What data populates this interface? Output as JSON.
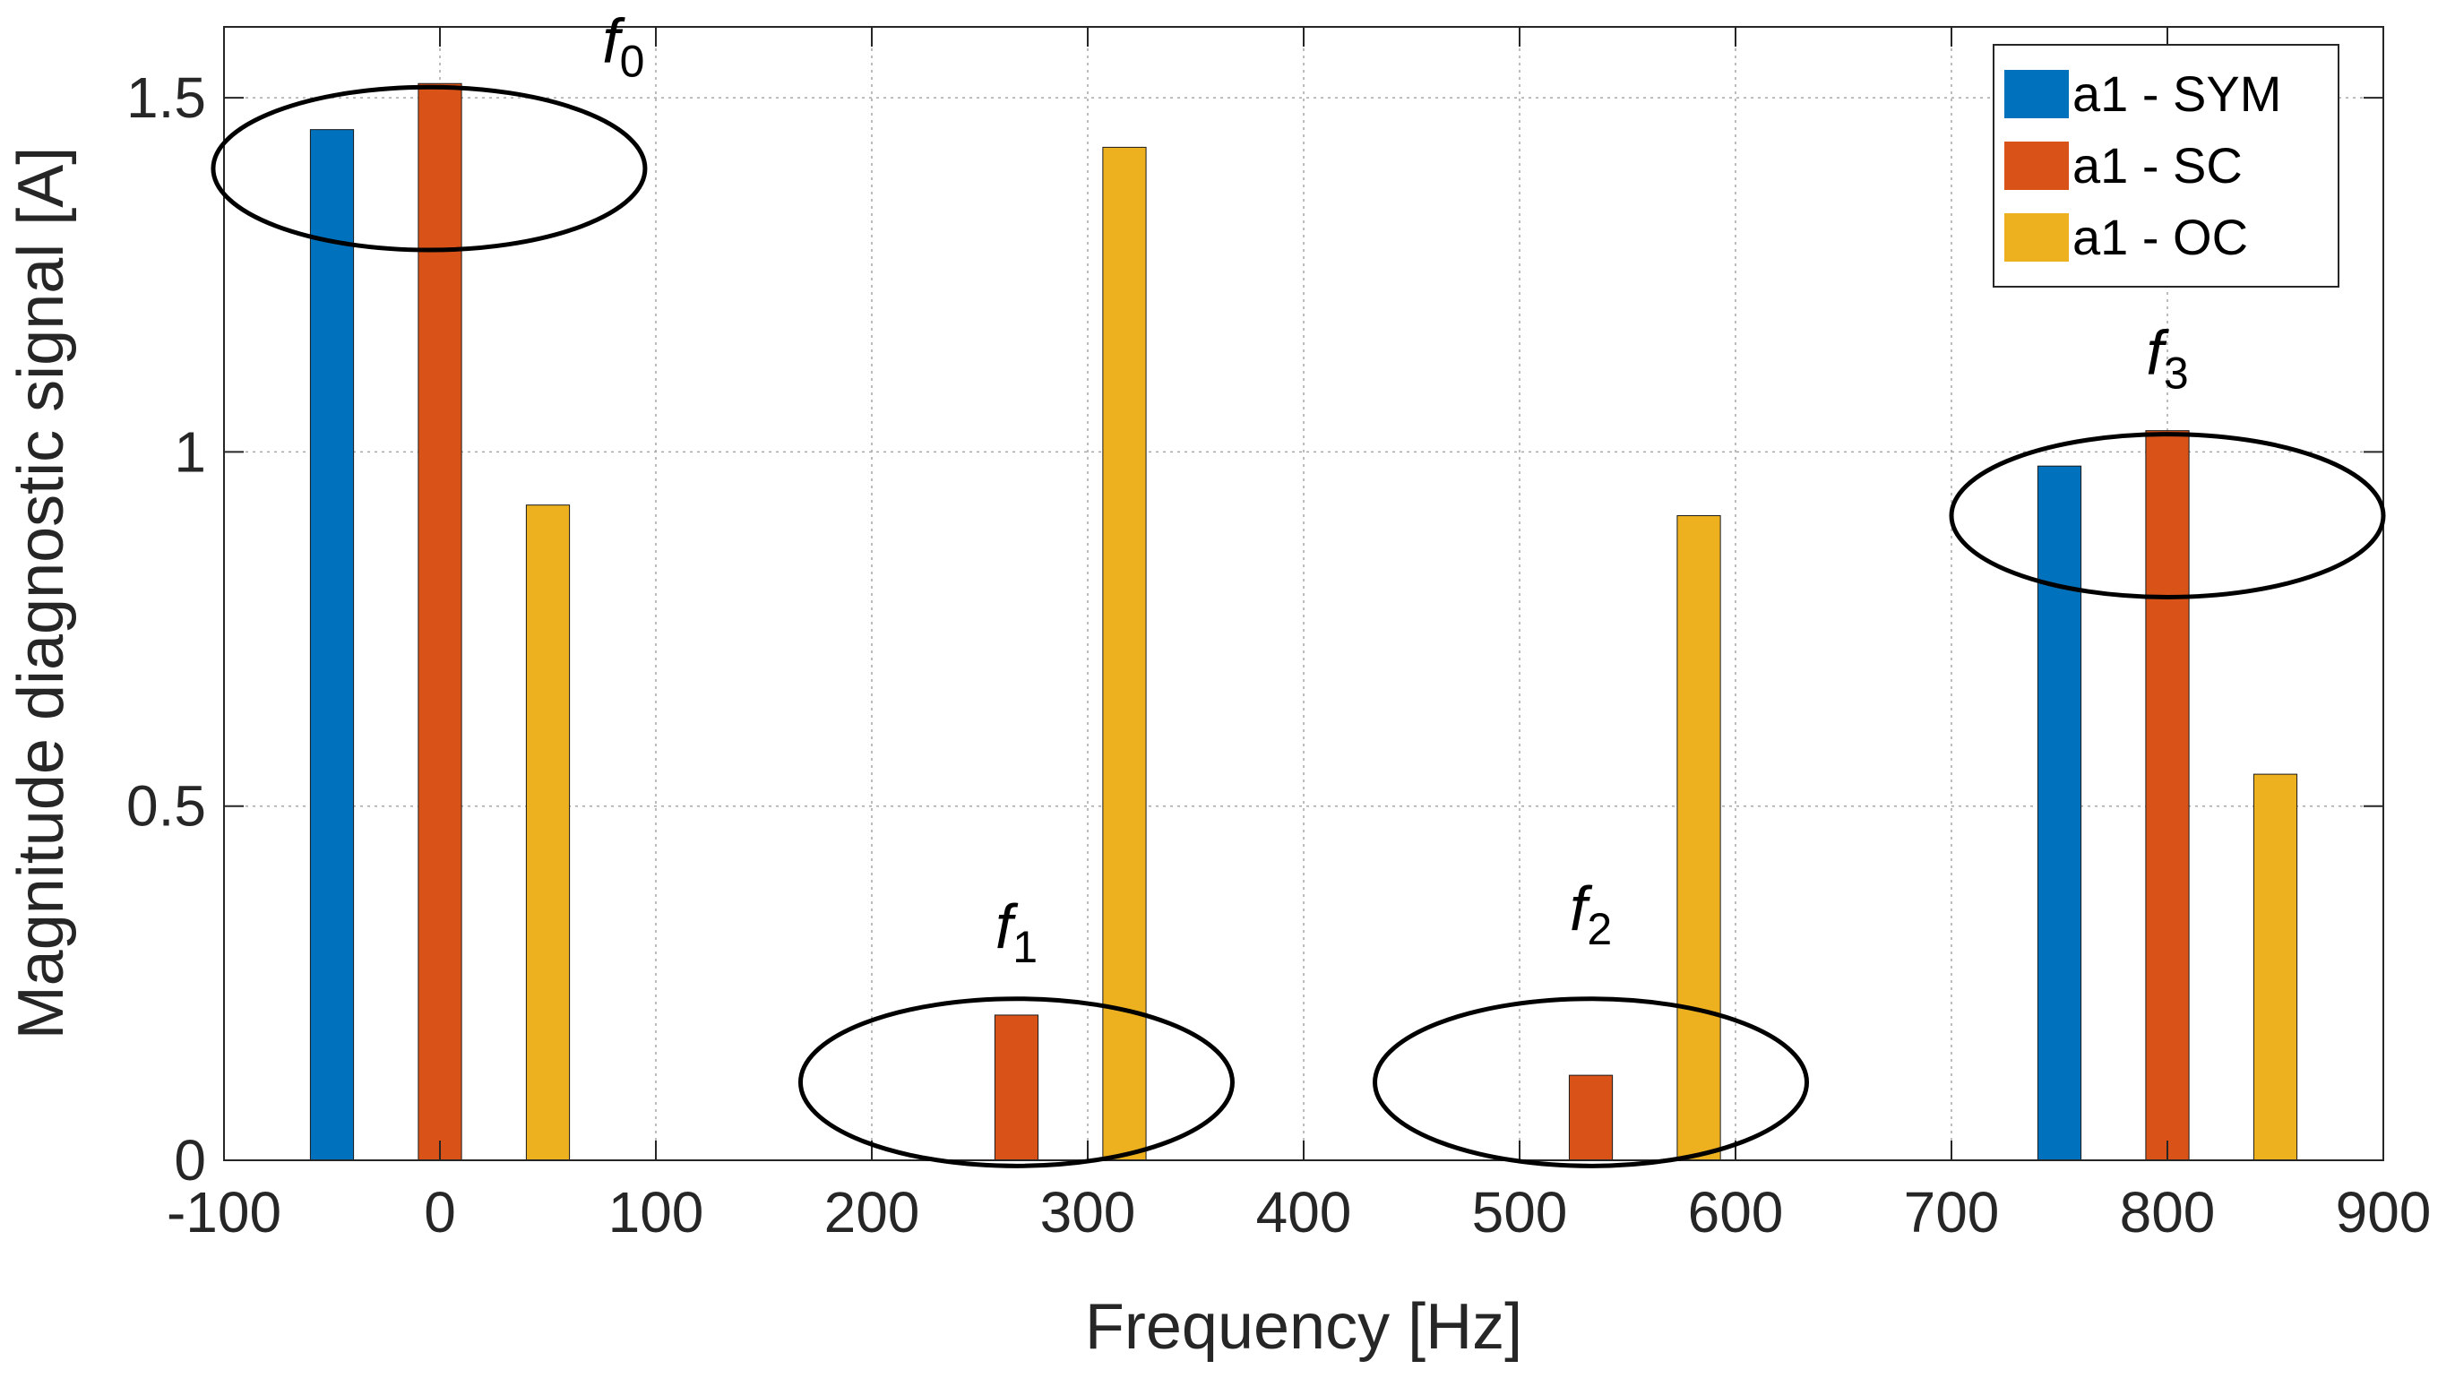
{
  "chart_data": {
    "type": "bar",
    "xlabel": "Frequency  [Hz]",
    "ylabel": "Magnitude diagnostic signal [A]",
    "xlim": [
      -100,
      900
    ],
    "ylim": [
      0,
      1.6
    ],
    "grid": true,
    "xticks": [
      "-100",
      "0",
      "100",
      "200",
      "300",
      "400",
      "500",
      "600",
      "700",
      "800",
      "900"
    ],
    "yticks": [
      "0",
      "0.5",
      "1",
      "1.5"
    ],
    "legend_position": "top-right",
    "categories": [
      0,
      267,
      533,
      800
    ],
    "series": [
      {
        "name": "a1 - SYM",
        "color": "#0072BD",
        "values": [
          1.455,
          0,
          0,
          0.98
        ]
      },
      {
        "name": "a1 - SC",
        "color": "#D95319",
        "values": [
          1.52,
          0.205,
          0.12,
          1.03
        ]
      },
      {
        "name": "a1 - OC",
        "color": "#EDB120",
        "values": [
          0.925,
          1.43,
          0.91,
          0.545
        ]
      }
    ],
    "annotations": [
      {
        "base": "f",
        "sub": "0"
      },
      {
        "base": "f",
        "sub": "1"
      },
      {
        "base": "f",
        "sub": "2"
      },
      {
        "base": "f",
        "sub": "3"
      }
    ]
  }
}
